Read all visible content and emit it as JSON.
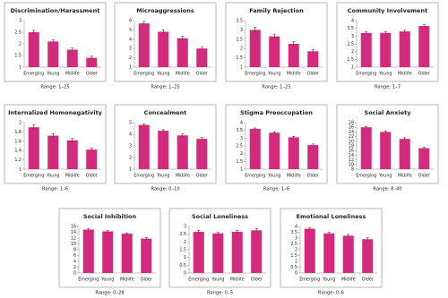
{
  "chart_data": [
    {
      "type": "bar",
      "title": "Discrimination/Harassment",
      "categories": [
        "Emerging",
        "Young",
        "Midlife",
        "Older"
      ],
      "values": [
        2.5,
        2.1,
        1.75,
        1.4
      ],
      "errors": [
        0.08,
        0.07,
        0.07,
        0.07
      ],
      "ylim": [
        1,
        3
      ],
      "yticks": [
        1,
        1.5,
        2,
        2.5,
        3
      ],
      "annotation": "Range: 1–25",
      "color": "#d42a7c"
    },
    {
      "type": "bar",
      "title": "Microaggressions",
      "categories": [
        "Emerging",
        "Young",
        "Midlife",
        "Older"
      ],
      "values": [
        5.7,
        4.8,
        4.1,
        3.0
      ],
      "errors": [
        0.2,
        0.2,
        0.2,
        0.15
      ],
      "ylim": [
        1,
        6
      ],
      "yticks": [
        1,
        2,
        3,
        4,
        5,
        6
      ],
      "annotation": "Range: 1–25",
      "color": "#d42a7c"
    },
    {
      "type": "bar",
      "title": "Family Rejection",
      "categories": [
        "Emerging",
        "Young",
        "Midlife",
        "Older"
      ],
      "values": [
        3.0,
        2.65,
        2.25,
        1.85
      ],
      "errors": [
        0.15,
        0.12,
        0.12,
        0.1
      ],
      "ylim": [
        1,
        3.5
      ],
      "yticks": [
        1,
        1.5,
        2,
        2.5,
        3,
        3.5
      ],
      "annotation": "Range: 1–25",
      "color": "#d42a7c"
    },
    {
      "type": "bar",
      "title": "Community Involvement",
      "categories": [
        "Emerging",
        "Young",
        "Midlife",
        "Older"
      ],
      "values": [
        3.2,
        3.2,
        3.3,
        3.65
      ],
      "errors": [
        0.07,
        0.07,
        0.08,
        0.08
      ],
      "ylim": [
        1,
        4
      ],
      "yticks": [
        1,
        1.5,
        2,
        2.5,
        3,
        3.5,
        4
      ],
      "annotation": "Range: 1–7",
      "color": "#d42a7c"
    },
    {
      "type": "bar",
      "title": "Internalized Homonegativity",
      "categories": [
        "Emerging",
        "Young",
        "Midlife",
        "Older"
      ],
      "values": [
        1.9,
        1.72,
        1.62,
        1.42
      ],
      "errors": [
        0.05,
        0.04,
        0.04,
        0.03
      ],
      "ylim": [
        1,
        2
      ],
      "yticks": [
        1,
        1.2,
        1.4,
        1.6,
        1.8,
        2
      ],
      "annotation": "Range: 1–6",
      "color": "#d42a7c"
    },
    {
      "type": "bar",
      "title": "Concealment",
      "categories": [
        "Emerging",
        "Young",
        "Midlife",
        "Older"
      ],
      "values": [
        4.8,
        4.3,
        3.9,
        3.6
      ],
      "errors": [
        0.08,
        0.1,
        0.12,
        0.12
      ],
      "ylim": [
        1,
        5
      ],
      "yticks": [
        1,
        2,
        3,
        4,
        5
      ],
      "annotation": "Range: 0–10",
      "color": "#d42a7c"
    },
    {
      "type": "bar",
      "title": "Stigma Preoccupation",
      "categories": [
        "Emerging",
        "Young",
        "Midlife",
        "Older"
      ],
      "values": [
        3.6,
        3.35,
        3.05,
        2.55
      ],
      "errors": [
        0.05,
        0.06,
        0.06,
        0.07
      ],
      "ylim": [
        1,
        4
      ],
      "yticks": [
        1,
        1.5,
        2,
        2.5,
        3,
        3.5,
        4
      ],
      "annotation": "Range: 1–6",
      "color": "#d42a7c"
    },
    {
      "type": "bar",
      "title": "Social Anxiety",
      "categories": [
        "Emerging",
        "Young",
        "Midlife",
        "Older"
      ],
      "values": [
        26,
        24,
        21,
        17
      ],
      "errors": [
        0.4,
        0.4,
        0.5,
        0.5
      ],
      "ylim": [
        8,
        28
      ],
      "yticks": [
        8,
        10,
        12,
        14,
        16,
        18,
        20,
        22,
        24,
        26,
        28
      ],
      "annotation": "Range: 8–40",
      "color": "#d42a7c"
    },
    {
      "type": "bar",
      "title": "Social Inhibition",
      "categories": [
        "Emerging",
        "Young",
        "Midlife",
        "Older"
      ],
      "values": [
        14.9,
        14.3,
        13.5,
        11.8
      ],
      "errors": [
        0.3,
        0.3,
        0.3,
        0.4
      ],
      "ylim": [
        0,
        16
      ],
      "yticks": [
        0,
        2,
        4,
        6,
        8,
        10,
        12,
        14,
        16
      ],
      "annotation": "Range: 0–28",
      "color": "#d42a7c"
    },
    {
      "type": "bar",
      "title": "Social Loneliness",
      "categories": [
        "Emerging",
        "Young",
        "Midlife",
        "Older"
      ],
      "values": [
        2.65,
        2.55,
        2.65,
        2.75
      ],
      "errors": [
        0.08,
        0.08,
        0.1,
        0.1
      ],
      "ylim": [
        0,
        3
      ],
      "yticks": [
        0,
        0.5,
        1,
        1.5,
        2,
        2.5,
        3
      ],
      "annotation": "Range: 0–5",
      "color": "#d42a7c"
    },
    {
      "type": "bar",
      "title": "Emotional Loneliness",
      "categories": [
        "Emerging",
        "Young",
        "Midlife",
        "Older"
      ],
      "values": [
        3.8,
        3.4,
        3.2,
        2.9
      ],
      "errors": [
        0.08,
        0.1,
        0.12,
        0.12
      ],
      "ylim": [
        0,
        4
      ],
      "yticks": [
        0,
        0.5,
        1,
        1.5,
        2,
        2.5,
        3,
        3.5,
        4
      ],
      "annotation": "Range: 0–6",
      "color": "#d42a7c"
    }
  ]
}
